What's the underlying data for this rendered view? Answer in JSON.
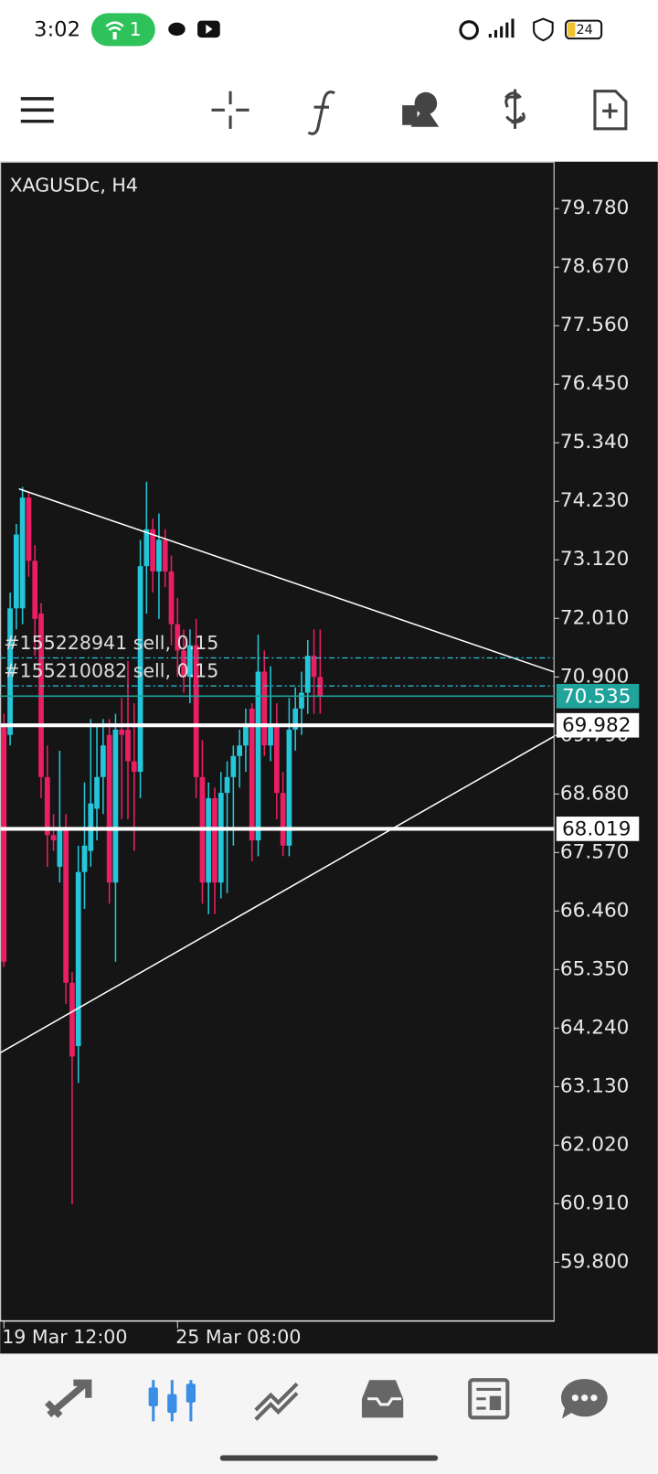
{
  "status_bar": {
    "time": "3:02",
    "hotspot_count": "1",
    "battery": "24"
  },
  "chart_data": {
    "type": "candlestick",
    "title": "XAGUSDc, H4",
    "categories": [
      "19 Mar 12:00",
      null,
      null,
      null,
      null,
      null,
      null,
      null,
      null,
      null,
      null,
      null,
      null,
      null,
      null,
      null,
      null,
      null,
      null,
      null,
      null,
      null,
      null,
      null,
      null,
      null,
      null,
      null,
      "25 Mar 08:00",
      null,
      null,
      null,
      null,
      null,
      null,
      null,
      null,
      null,
      null,
      null,
      null,
      null,
      null,
      null,
      null,
      null,
      null,
      null,
      null,
      null,
      null,
      null
    ],
    "open": [
      70.0,
      69.8,
      72.2,
      72.2,
      74.3,
      73.1,
      72.1,
      69.0,
      67.9,
      67.3,
      68.0,
      65.1,
      63.9,
      67.2,
      67.6,
      68.4,
      69.0,
      69.8,
      67.0,
      69.9,
      69.9,
      69.3,
      69.1,
      73.0,
      73.7,
      72.9,
      73.5,
      72.9,
      71.9,
      71.4,
      70.9,
      71.5,
      69.0,
      67.0,
      68.6,
      67.0,
      68.7,
      69.0,
      69.4,
      69.6,
      70.3,
      67.8,
      71.0,
      69.6,
      70.0,
      68.7,
      67.7,
      69.9,
      70.3,
      70.6,
      71.3,
      70.9
    ],
    "high": [
      70.2,
      72.5,
      73.8,
      74.5,
      74.4,
      73.4,
      72.3,
      69.6,
      68.3,
      69.5,
      68.3,
      65.3,
      67.7,
      68.9,
      70.1,
      70.0,
      70.1,
      70.1,
      70.2,
      70.5,
      71.2,
      70.4,
      73.5,
      74.6,
      73.9,
      74.0,
      73.7,
      73.2,
      72.4,
      71.8,
      71.8,
      72.0,
      69.7,
      68.9,
      68.8,
      69.1,
      69.3,
      69.6,
      69.9,
      70.3,
      70.4,
      71.7,
      71.4,
      71.1,
      70.4,
      69.1,
      70.5,
      70.7,
      71.0,
      71.6,
      71.8,
      71.8
    ],
    "low": [
      65.4,
      69.6,
      71.8,
      71.9,
      72.8,
      71.3,
      68.6,
      67.3,
      67.6,
      67.0,
      64.7,
      60.9,
      63.2,
      66.5,
      67.3,
      67.8,
      68.3,
      66.6,
      65.5,
      68.2,
      68.2,
      67.6,
      68.6,
      72.1,
      72.5,
      72.0,
      72.6,
      71.5,
      70.9,
      70.6,
      70.4,
      68.6,
      66.6,
      66.4,
      66.4,
      66.7,
      66.8,
      67.7,
      68.8,
      69.1,
      67.4,
      67.5,
      69.4,
      69.3,
      68.2,
      67.5,
      67.5,
      69.5,
      69.8,
      70.2,
      70.2,
      70.2
    ],
    "close": [
      65.5,
      72.2,
      73.6,
      74.3,
      73.1,
      72.0,
      69.0,
      67.9,
      67.8,
      68.0,
      65.1,
      63.7,
      67.2,
      67.7,
      68.5,
      69.0,
      69.6,
      67.0,
      69.9,
      69.8,
      69.3,
      69.1,
      73.0,
      73.7,
      72.9,
      73.5,
      72.9,
      71.9,
      71.4,
      70.9,
      71.5,
      69.0,
      67.0,
      68.6,
      67.0,
      68.7,
      69.0,
      69.4,
      69.6,
      70.0,
      67.8,
      71.0,
      69.6,
      70.0,
      68.7,
      67.7,
      69.9,
      70.3,
      70.6,
      71.3,
      70.9,
      70.535
    ],
    "up_color": "#26c6da",
    "down_color": "#e91e63",
    "ylim": [
      58.69,
      80.67
    ],
    "yticks": [
      {
        "value": 79.78,
        "label": "79.780"
      },
      {
        "value": 78.67,
        "label": "78.670"
      },
      {
        "value": 77.56,
        "label": "77.560"
      },
      {
        "value": 76.45,
        "label": "76.450"
      },
      {
        "value": 75.34,
        "label": "75.340"
      },
      {
        "value": 74.23,
        "label": "74.230"
      },
      {
        "value": 73.12,
        "label": "73.120"
      },
      {
        "value": 72.01,
        "label": "72.010"
      },
      {
        "value": 70.9,
        "label": "70.900"
      },
      {
        "value": 69.79,
        "label": "69.790"
      },
      {
        "value": 68.68,
        "label": "68.680"
      },
      {
        "value": 67.57,
        "label": "67.570"
      },
      {
        "value": 66.46,
        "label": "66.460"
      },
      {
        "value": 65.35,
        "label": "65.350"
      },
      {
        "value": 64.24,
        "label": "64.240"
      },
      {
        "value": 63.13,
        "label": "63.130"
      },
      {
        "value": 62.02,
        "label": "62.020"
      },
      {
        "value": 60.91,
        "label": "60.910"
      },
      {
        "value": 59.8,
        "label": "59.800"
      }
    ],
    "price_lines": [
      {
        "value": 70.535,
        "color": "#1fa39a"
      },
      {
        "value": 69.982,
        "color": "#ffffff"
      },
      {
        "value": 68.019,
        "color": "#ffffff"
      }
    ],
    "orders": [
      {
        "label": "#155228941 sell, 0.15",
        "value": 71.26
      },
      {
        "label": "#155210082 sell, 0.15",
        "value": 70.73
      }
    ]
  }
}
